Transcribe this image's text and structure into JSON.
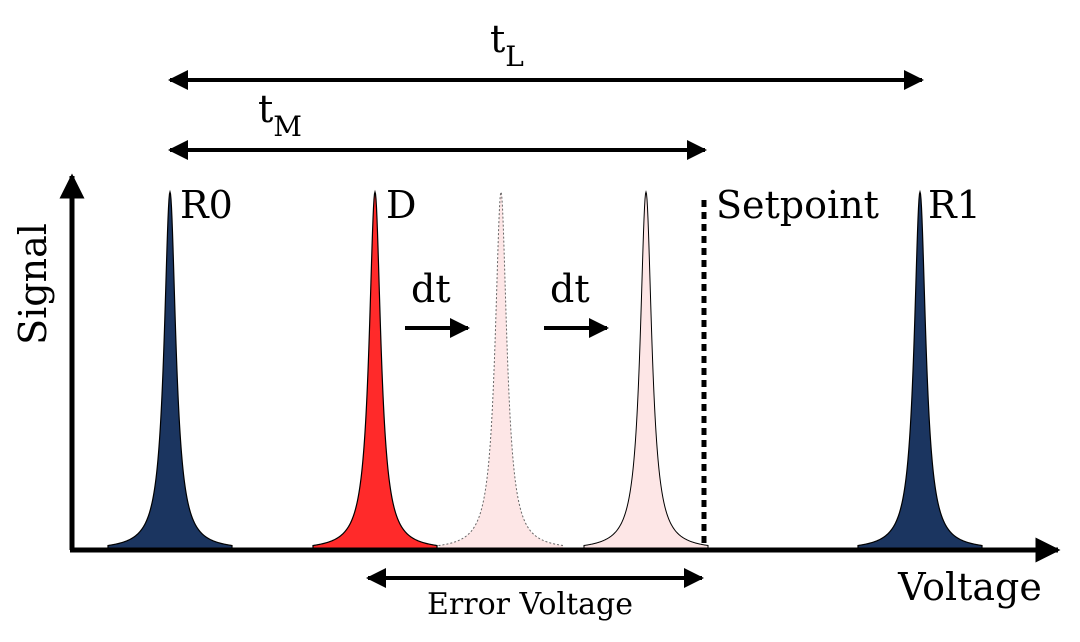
{
  "axes": {
    "y_label": "Signal",
    "x_label": "Voltage"
  },
  "peaks": {
    "r0": {
      "label": "R0",
      "color": "#1b3560"
    },
    "d": {
      "label": "D",
      "color": "#ff2a2a"
    },
    "ghost1": {
      "color": "#fde6e6"
    },
    "ghost2": {
      "color": "#fde6e6"
    },
    "r1": {
      "label": "R1",
      "color": "#1b3560"
    }
  },
  "setpoint": {
    "label": "Setpoint"
  },
  "spans": {
    "t_L": {
      "base": "t",
      "subscript": "L"
    },
    "t_M": {
      "base": "t",
      "subscript": "M"
    },
    "error": {
      "label": "Error Voltage"
    }
  },
  "shifts": [
    {
      "label": "dt"
    },
    {
      "label": "dt"
    }
  ]
}
